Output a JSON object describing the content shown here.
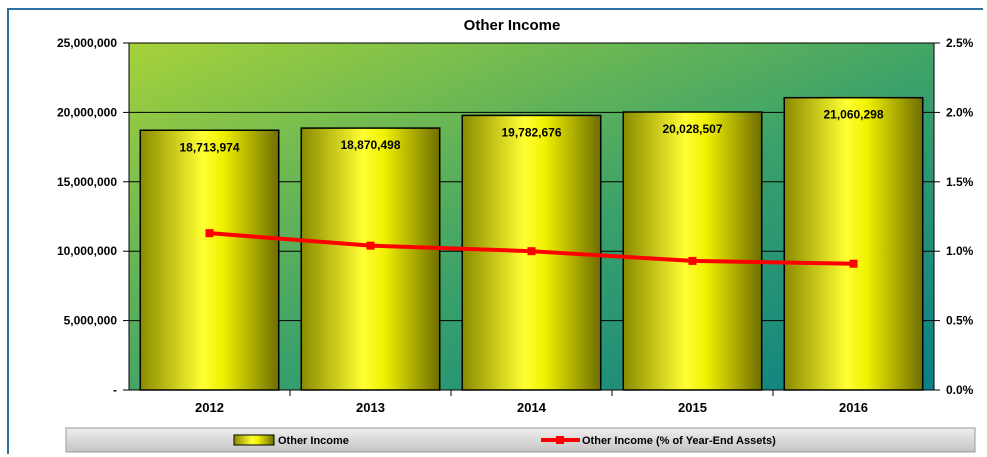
{
  "chart_data": {
    "type": "bar",
    "title": "Other Income",
    "categories": [
      "2012",
      "2013",
      "2014",
      "2015",
      "2016"
    ],
    "series": [
      {
        "name": "Other Income",
        "type": "bar",
        "axis": "left",
        "values": [
          18713974,
          18870498,
          19782676,
          20028507,
          21060298
        ],
        "labels": [
          "18,713,974",
          "18,870,498",
          "19,782,676",
          "20,028,507",
          "21,060,298"
        ],
        "color": "#e8e800"
      },
      {
        "name": "Other Income (% of Year-End Assets)",
        "type": "line",
        "axis": "right",
        "values": [
          1.13,
          1.04,
          1.0,
          0.93,
          0.91
        ],
        "color": "#ff0000"
      }
    ],
    "y_left": {
      "ylim": [
        0,
        25000000
      ],
      "ticks": [
        0,
        5000000,
        10000000,
        15000000,
        20000000,
        25000000
      ],
      "tick_labels": [
        "-",
        "5,000,000",
        "10,000,000",
        "15,000,000",
        "20,000,000",
        "25,000,000"
      ]
    },
    "y_right": {
      "ylim": [
        0,
        2.5
      ],
      "ticks": [
        0,
        0.5,
        1.0,
        1.5,
        2.0,
        2.5
      ],
      "tick_labels": [
        "0.0%",
        "0.5%",
        "1.0%",
        "1.5%",
        "2.0%",
        "2.5%"
      ]
    },
    "grid": true,
    "legend_position": "bottom",
    "colors": {
      "plot_gradient_start": "#9acd32",
      "plot_gradient_end": "#0f8a8a",
      "legend_bg": "#d4d4d4",
      "frame": "#2f6f9f"
    }
  }
}
